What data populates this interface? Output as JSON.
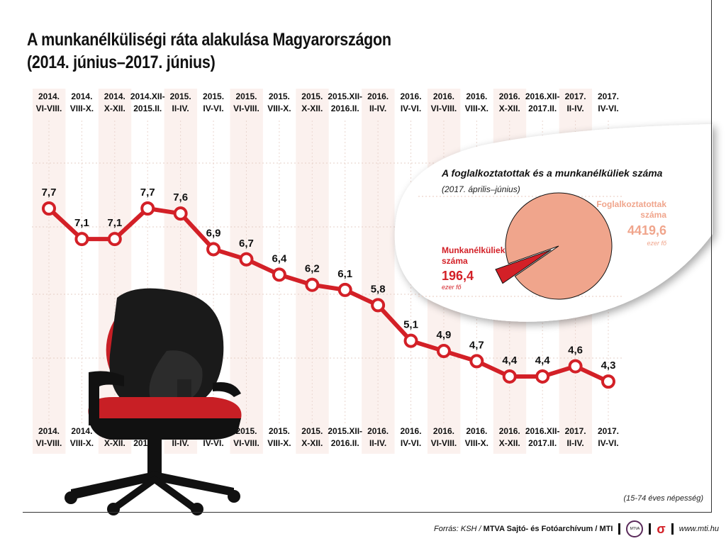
{
  "title_line1": "A munkanélküliségi ráta alakulása Magyarországon",
  "title_line2": "(2014. június–2017. június)",
  "colors": {
    "line": "#d32027",
    "band": "#f7e6e0",
    "pie_employed": "#f0a58c",
    "pie_unemployed": "#d32027"
  },
  "chart_data": [
    {
      "type": "line",
      "categories": [
        [
          "2014.",
          "VI-VIII."
        ],
        [
          "2014.",
          "VIII-X."
        ],
        [
          "2014.",
          "X-XII."
        ],
        [
          "2014.XII-",
          "2015.II."
        ],
        [
          "2015.",
          "II-IV."
        ],
        [
          "2015.",
          "IV-VI."
        ],
        [
          "2015.",
          "VI-VIII."
        ],
        [
          "2015.",
          "VIII-X."
        ],
        [
          "2015.",
          "X-XII."
        ],
        [
          "2015.XII-",
          "2016.II."
        ],
        [
          "2016.",
          "II-IV."
        ],
        [
          "2016.",
          "IV-VI."
        ],
        [
          "2016.",
          "VI-VIII."
        ],
        [
          "2016.",
          "VIII-X."
        ],
        [
          "2016.",
          "X-XII."
        ],
        [
          "2016.XII-",
          "2017.II."
        ],
        [
          "2017.",
          "II-IV."
        ],
        [
          "2017.",
          "IV-VI."
        ]
      ],
      "values": [
        7.7,
        7.1,
        7.1,
        7.7,
        7.6,
        6.9,
        6.7,
        6.4,
        6.2,
        6.1,
        5.8,
        5.1,
        4.9,
        4.7,
        4.4,
        4.4,
        4.6,
        4.3
      ],
      "value_labels": [
        "7,7",
        "7,1",
        "7,1",
        "7,7",
        "7,6",
        "6,9",
        "6,7",
        "6,4",
        "6,2",
        "6,1",
        "5,8",
        "5,1",
        "4,9",
        "4,7",
        "4,4",
        "4,4",
        "4,6",
        "4,3"
      ],
      "grid": true
    },
    {
      "type": "pie",
      "title": "A foglalkoztatottak és a munkanélküliek száma",
      "subtitle": "(2017. április–június)",
      "slices": [
        {
          "label_line1": "Foglalkoztatottak",
          "label_line2": "száma",
          "value": 4419.6,
          "value_label": "4419,6",
          "unit": "ezer fő"
        },
        {
          "label_line1": "Munkanélküliek",
          "label_line2": "száma",
          "value": 196.4,
          "value_label": "196,4",
          "unit": "ezer fő"
        }
      ]
    }
  ],
  "population_note": "(15-74 éves népesség)",
  "footer": {
    "source": "Forrás: KSH /",
    "agency": "MTVA Sajtó- és Fotóarchívum / MTI",
    "logo_text": "MTVA",
    "url": "www.mti.hu"
  }
}
